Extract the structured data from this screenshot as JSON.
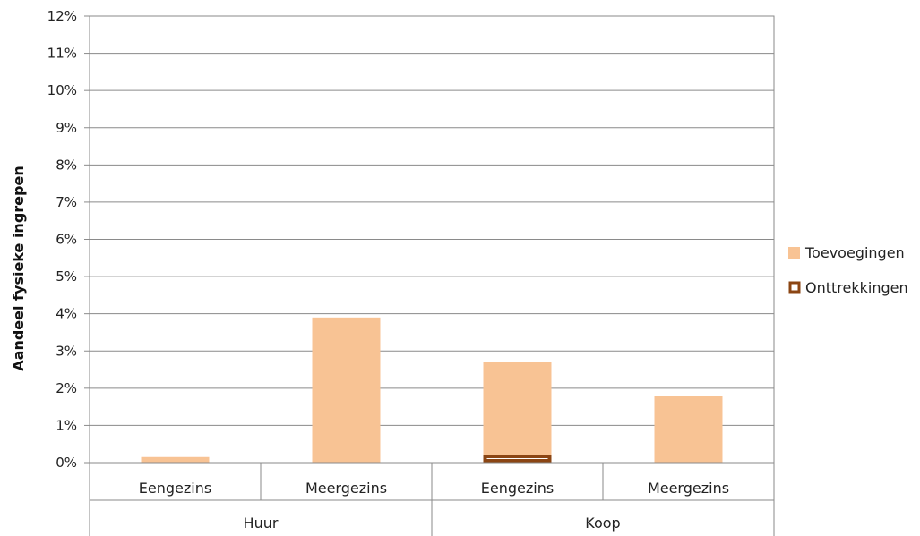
{
  "chart_data": {
    "type": "bar",
    "ylabel": "Aandeel fysieke ingrepen",
    "ylim": [
      0,
      12
    ],
    "yticks": [
      "0%",
      "1%",
      "2%",
      "3%",
      "4%",
      "5%",
      "6%",
      "7%",
      "8%",
      "9%",
      "10%",
      "11%",
      "12%"
    ],
    "categories": [
      "Eengezins",
      "Meergezins",
      "Eengezins",
      "Meergezins"
    ],
    "groups": [
      {
        "label": "Huur",
        "span": 2
      },
      {
        "label": "Koop",
        "span": 2
      }
    ],
    "grid": true,
    "legend_position": "right",
    "series": [
      {
        "name": "Toevoegingen",
        "values": [
          0.15,
          3.9,
          2.7,
          1.8
        ],
        "color": "#F8C394",
        "style": "filled"
      },
      {
        "name": "Onttrekkingen",
        "values": [
          0,
          0,
          0.12,
          0
        ],
        "color": "#8B4513",
        "style": "outline"
      }
    ]
  }
}
